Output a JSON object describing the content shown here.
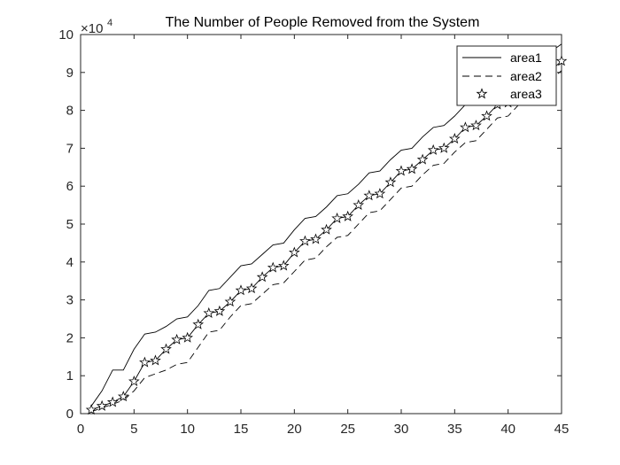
{
  "chart_data": {
    "type": "line",
    "title": "The Number of People Removed from the System",
    "xlabel": "",
    "ylabel": "",
    "xlim": [
      0,
      45
    ],
    "ylim": [
      0,
      10
    ],
    "y_multiplier_label": "×10",
    "y_multiplier_exponent": "4",
    "x_ticks": [
      0,
      5,
      10,
      15,
      20,
      25,
      30,
      35,
      40,
      45
    ],
    "y_ticks": [
      0,
      1,
      2,
      3,
      4,
      5,
      6,
      7,
      8,
      9,
      10
    ],
    "grid": false,
    "legend_position": "top-right",
    "x": [
      1,
      2,
      3,
      4,
      5,
      6,
      7,
      8,
      9,
      10,
      11,
      12,
      13,
      14,
      15,
      16,
      17,
      18,
      19,
      20,
      21,
      22,
      23,
      24,
      25,
      26,
      27,
      28,
      29,
      30,
      31,
      32,
      33,
      34,
      35,
      36,
      37,
      38,
      39,
      40,
      41,
      42,
      43,
      44,
      45
    ],
    "series": [
      {
        "name": "area1",
        "style": "solid",
        "values": [
          0.2,
          0.6,
          1.15,
          1.15,
          1.7,
          2.1,
          2.15,
          2.3,
          2.5,
          2.55,
          2.85,
          3.25,
          3.3,
          3.6,
          3.9,
          3.95,
          4.2,
          4.45,
          4.5,
          4.85,
          5.15,
          5.2,
          5.45,
          5.75,
          5.8,
          6.05,
          6.35,
          6.4,
          6.7,
          6.95,
          7.0,
          7.3,
          7.55,
          7.6,
          7.85,
          8.15,
          8.2,
          8.45,
          8.75,
          8.8,
          9.05,
          9.2,
          9.35,
          9.55,
          9.75
        ]
      },
      {
        "name": "area2",
        "style": "dashed",
        "values": [
          0.05,
          0.15,
          0.25,
          0.35,
          0.6,
          0.95,
          1.05,
          1.15,
          1.3,
          1.35,
          1.75,
          2.15,
          2.2,
          2.55,
          2.85,
          2.9,
          3.15,
          3.4,
          3.45,
          3.75,
          4.05,
          4.1,
          4.4,
          4.65,
          4.7,
          5.0,
          5.3,
          5.35,
          5.65,
          5.95,
          6.0,
          6.3,
          6.55,
          6.6,
          6.9,
          7.15,
          7.2,
          7.5,
          7.8,
          7.85,
          8.15,
          8.4,
          8.5,
          8.8,
          9.05
        ]
      },
      {
        "name": "area3",
        "style": "star-markers",
        "values": [
          0.1,
          0.2,
          0.3,
          0.45,
          0.85,
          1.35,
          1.4,
          1.7,
          1.95,
          2.0,
          2.35,
          2.65,
          2.7,
          2.95,
          3.25,
          3.3,
          3.6,
          3.85,
          3.9,
          4.25,
          4.55,
          4.6,
          4.85,
          5.15,
          5.2,
          5.5,
          5.75,
          5.8,
          6.1,
          6.4,
          6.45,
          6.7,
          6.95,
          7.0,
          7.25,
          7.55,
          7.6,
          7.85,
          8.15,
          8.2,
          8.5,
          8.75,
          8.8,
          9.05,
          9.3
        ]
      }
    ],
    "colors": {
      "line": "#000000",
      "axis": "#262626",
      "background": "#ffffff"
    }
  }
}
